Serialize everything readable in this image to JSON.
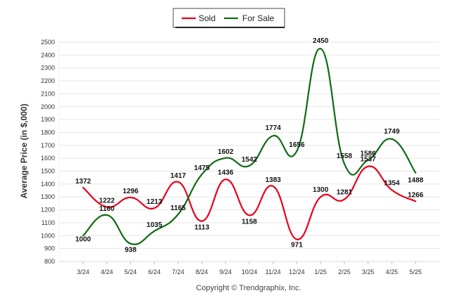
{
  "chart_data": {
    "type": "line",
    "title": "",
    "xlabel": "",
    "ylabel": "Average Price (in $,000)",
    "ylim": [
      800,
      2500
    ],
    "yticks": [
      800,
      900,
      1000,
      1100,
      1200,
      1300,
      1400,
      1500,
      1600,
      1700,
      1800,
      1900,
      2000,
      2100,
      2200,
      2300,
      2400,
      2500
    ],
    "categories": [
      "3/24",
      "4/24",
      "5/24",
      "6/24",
      "7/24",
      "8/24",
      "9/24",
      "10/24",
      "11/24",
      "12/24",
      "1/25",
      "2/25",
      "3/25",
      "4/25",
      "5/25"
    ],
    "grid": true,
    "legend_position": "top-center",
    "series": [
      {
        "name": "Sold",
        "color": "#e8001c",
        "values": [
          1372,
          1222,
          1296,
          1213,
          1417,
          1113,
          1436,
          1158,
          1383,
          971,
          1300,
          1281,
          1537,
          1354,
          1266
        ]
      },
      {
        "name": "For Sale",
        "color": "#0f6a12",
        "values": [
          1000,
          1160,
          938,
          1035,
          1165,
          1475,
          1602,
          1542,
          1774,
          1656,
          2450,
          1558,
          1586,
          1749,
          1488
        ]
      }
    ]
  },
  "footer": {
    "copyright": "Copyright © Trendgraphix, Inc."
  }
}
